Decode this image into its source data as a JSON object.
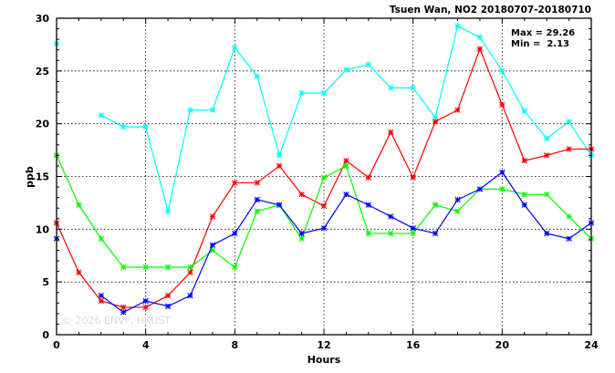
{
  "chart_data": {
    "type": "line",
    "title": "Tsuen Wan, NO2 20180707-20180710",
    "xlabel": "Hours",
    "ylabel": "ppb",
    "xlim": [
      0,
      24
    ],
    "ylim": [
      0,
      30
    ],
    "x_ticks": [
      0,
      4,
      8,
      12,
      16,
      20,
      24
    ],
    "y_ticks": [
      0,
      5,
      10,
      15,
      20,
      25,
      30
    ],
    "grid": true,
    "x": [
      0,
      1,
      2,
      3,
      4,
      5,
      6,
      7,
      8,
      9,
      10,
      11,
      12,
      13,
      14,
      15,
      16,
      17,
      18,
      19,
      20,
      21,
      22,
      23,
      24
    ],
    "series": [
      {
        "color": "#00ffff",
        "values": [
          27.6,
          null,
          20.8,
          19.7,
          19.7,
          11.7,
          21.3,
          21.3,
          27.2,
          24.5,
          17.0,
          22.9,
          22.9,
          25.1,
          25.6,
          23.4,
          23.4,
          20.6,
          29.26,
          28.2,
          25.0,
          21.2,
          18.6,
          20.2,
          17.0
        ]
      },
      {
        "color": "#ff0000",
        "values": [
          10.6,
          5.9,
          3.2,
          2.6,
          2.6,
          3.7,
          5.9,
          11.2,
          14.4,
          14.4,
          16.0,
          13.3,
          12.2,
          16.5,
          14.9,
          19.2,
          14.9,
          20.2,
          21.3,
          27.1,
          21.8,
          16.5,
          17.0,
          17.6,
          17.6
        ]
      },
      {
        "color": "#00ff00",
        "values": [
          17.0,
          12.3,
          9.1,
          6.4,
          6.4,
          6.4,
          6.4,
          8.0,
          6.4,
          11.7,
          12.3,
          9.1,
          14.9,
          16.0,
          9.6,
          9.6,
          9.6,
          12.3,
          11.7,
          13.8,
          13.8,
          13.3,
          13.3,
          11.2,
          9.1
        ]
      },
      {
        "color": "#0000ff",
        "values": [
          9.1,
          null,
          3.7,
          2.13,
          3.2,
          2.7,
          3.7,
          8.5,
          9.6,
          12.8,
          12.3,
          9.6,
          10.1,
          13.3,
          12.3,
          11.2,
          10.1,
          9.6,
          12.8,
          13.8,
          15.4,
          12.3,
          9.6,
          9.1,
          10.6
        ]
      }
    ],
    "stats": {
      "max_label": "Max = 29.26",
      "min_label": "Min =  2.13"
    },
    "watermark": "© 2026  ENVF, HKUST"
  }
}
